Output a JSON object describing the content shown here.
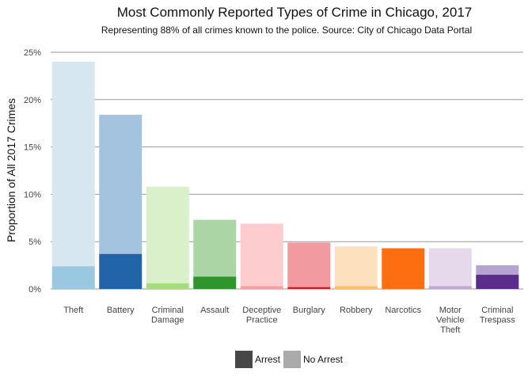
{
  "chart_data": {
    "type": "bar",
    "stacked": true,
    "title": "Most Commonly Reported Types of Crime in Chicago, 2017",
    "subtitle": "Representing 88% of all crimes known to the police. Source: City of Chicago Data Portal",
    "xlabel": "",
    "ylabel": "Proportion of All 2017 Crimes",
    "ylim": [
      0,
      0.25
    ],
    "yticks": [
      0,
      0.05,
      0.1,
      0.15,
      0.2,
      0.25
    ],
    "ytick_labels": [
      "0%",
      "5%",
      "10%",
      "15%",
      "20%",
      "25%"
    ],
    "grid": "horizontal",
    "legend_position": "bottom",
    "categories": [
      [
        "Theft"
      ],
      [
        "Battery"
      ],
      [
        "Criminal",
        "Damage"
      ],
      [
        "Assault"
      ],
      [
        "Deceptive",
        "Practice"
      ],
      [
        "Burglary"
      ],
      [
        "Robbery"
      ],
      [
        "Narcotics"
      ],
      [
        "Motor",
        "Vehicle",
        "Theft"
      ],
      [
        "Criminal",
        "Trespass"
      ]
    ],
    "series": [
      {
        "name": "Arrest",
        "values": [
          0.024,
          0.037,
          0.006,
          0.013,
          0.003,
          0.002,
          0.003,
          0.043,
          0.003,
          0.015
        ]
      },
      {
        "name": "No Arrest",
        "values": [
          0.216,
          0.147,
          0.102,
          0.06,
          0.066,
          0.047,
          0.042,
          0.0,
          0.04,
          0.01
        ]
      }
    ],
    "colors": {
      "arrest": [
        "#9ac8e0",
        "#2264a8",
        "#a6dc7e",
        "#2e962d",
        "#f4a0a0",
        "#d51b2a",
        "#fdbd6d",
        "#fd6e10",
        "#c0a8d4",
        "#5a2c8c"
      ],
      "no_arrest": [
        "#d6e7f2",
        "#a4c3de",
        "#d9f0ca",
        "#acd5a6",
        "#fccccf",
        "#f19ba1",
        "#fde0be",
        "#fd6e10",
        "#e6d9ec",
        "#b7a3cf"
      ]
    },
    "legend": [
      {
        "label": "Arrest",
        "color": "#474747"
      },
      {
        "label": "No Arrest",
        "color": "#aaaaaa"
      }
    ],
    "gridline_color": "#9a9a9a"
  }
}
